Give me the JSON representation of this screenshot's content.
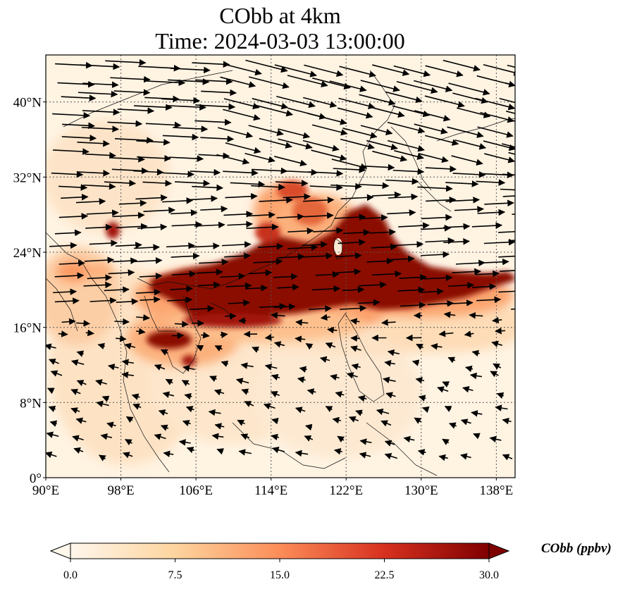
{
  "title": {
    "line1": "CObb at 4km",
    "line2": "Time: 2024-03-03 13:00:00"
  },
  "map": {
    "extent": {
      "lon": [
        90,
        140
      ],
      "lat": [
        0,
        45
      ]
    },
    "lon_ticks": [
      {
        "value": 90,
        "label": "90°E"
      },
      {
        "value": 98,
        "label": "98°E"
      },
      {
        "value": 106,
        "label": "106°E"
      },
      {
        "value": 114,
        "label": "114°E"
      },
      {
        "value": 122,
        "label": "122°E"
      },
      {
        "value": 130,
        "label": "130°E"
      },
      {
        "value": 138,
        "label": "138°E"
      }
    ],
    "lat_ticks": [
      {
        "value": 0,
        "label": "0°"
      },
      {
        "value": 8,
        "label": "8°N"
      },
      {
        "value": 16,
        "label": "16°N"
      },
      {
        "value": 24,
        "label": "24°N"
      },
      {
        "value": 32,
        "label": "32°N"
      },
      {
        "value": 40,
        "label": "40°N"
      }
    ],
    "gridlines": "dotted",
    "wind_vectors": "westerly north of 18°N, easterly south of 16°N",
    "plumes": [
      {
        "region": "Indochina to East China Sea to Pacific",
        "level": "high",
        "value": 30
      },
      {
        "region": "Yunnan",
        "level": "high",
        "value": 28
      },
      {
        "region": "Cambodia",
        "level": "high",
        "value": 26
      },
      {
        "region": "South China",
        "level": "moderate",
        "value": 15
      }
    ]
  },
  "colorbar": {
    "label": "CObb (ppbv)",
    "min": 0.0,
    "max": 30.0,
    "ticks": [
      "0.0",
      "7.5",
      "15.0",
      "22.5",
      "30.0"
    ],
    "colormap": "OrRd",
    "colors": [
      "#fff7ec",
      "#fdd49e",
      "#fc8d59",
      "#d7301f",
      "#7f0000"
    ],
    "extend": "both"
  }
}
